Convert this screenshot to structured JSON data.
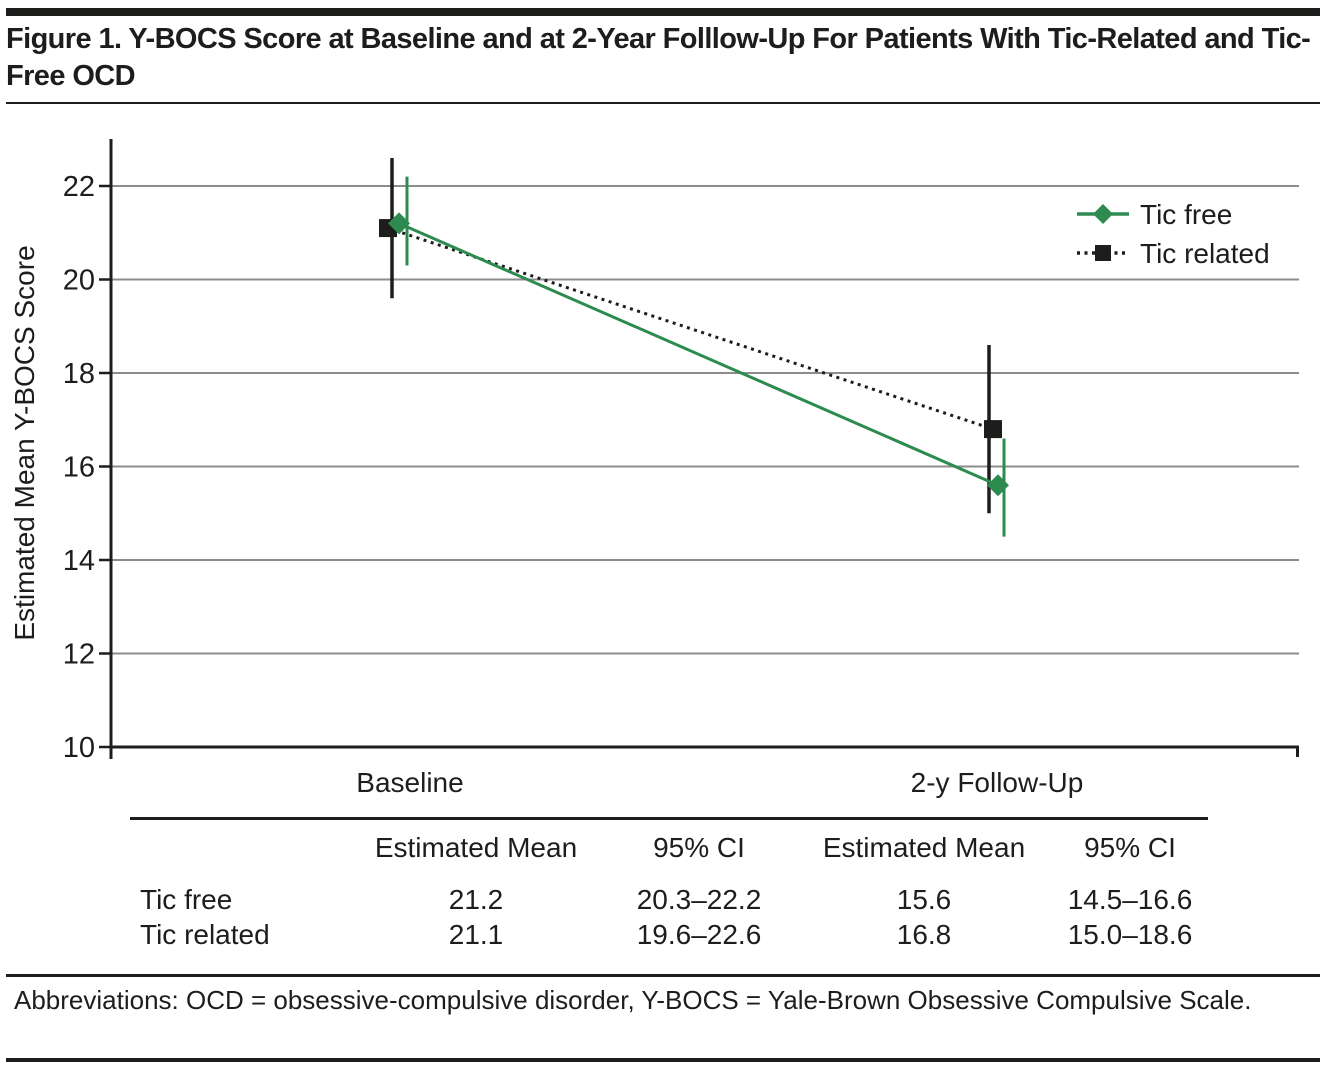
{
  "figure": {
    "title": "Figure 1. Y-BOCS Score at Baseline and at 2-Year Folllow-Up For Patients With Tic-Related and Tic-Free OCD",
    "footnote": "Abbreviations: OCD = obsessive-compulsive disorder, Y-BOCS = Yale-Brown Obsessive Compulsive Scale."
  },
  "chart_data": {
    "type": "line",
    "title": "",
    "categories": [
      "Baseline",
      "2-y Follow-Up"
    ],
    "xlabel": "",
    "ylabel": "Estimated Mean Y-BOCS Score",
    "ylim": [
      10,
      23
    ],
    "yticks": [
      10,
      12,
      14,
      16,
      18,
      20,
      22
    ],
    "grid": true,
    "legend_position": "top-right",
    "series": [
      {
        "name": "Tic related",
        "marker": "square",
        "line_style": "dotted",
        "color": "#1d1d1b",
        "values": [
          21.1,
          16.8
        ],
        "ci_low": [
          19.6,
          15.0
        ],
        "ci_high": [
          22.6,
          18.6
        ]
      },
      {
        "name": "Tic free",
        "marker": "diamond",
        "line_style": "solid",
        "color": "#2e8b50",
        "values": [
          21.2,
          15.6
        ],
        "ci_low": [
          20.3,
          14.5
        ],
        "ci_high": [
          22.2,
          16.6
        ]
      }
    ]
  },
  "table": {
    "col_headers": [
      "Estimated Mean",
      "95% CI",
      "Estimated Mean",
      "95% CI"
    ],
    "rows": [
      {
        "label": "Tic free",
        "values": [
          "21.2",
          "20.3–22.2",
          "15.6",
          "14.5–16.6"
        ]
      },
      {
        "label": "Tic related",
        "values": [
          "21.1",
          "19.6–22.6",
          "16.8",
          "15.0–18.6"
        ]
      }
    ]
  }
}
